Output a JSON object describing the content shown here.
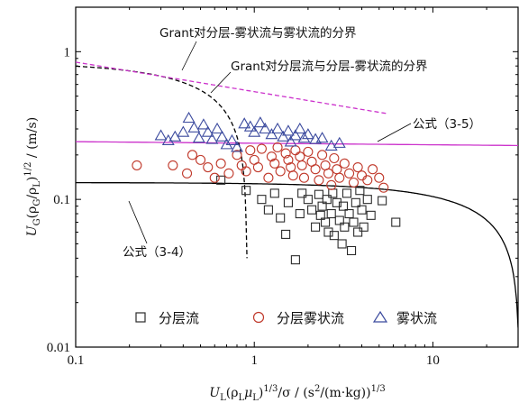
{
  "chart_data": {
    "type": "scatter",
    "x_scale": "log",
    "y_scale": "log",
    "xlim": [
      0.1,
      30
    ],
    "ylim": [
      0.01,
      2
    ],
    "x_ticks": [
      "0.1",
      "1",
      "10"
    ],
    "y_ticks": [
      "0.01",
      "0.1",
      "1"
    ],
    "xlabel": {
      "base": "U",
      "sub1": "L",
      "paren_open": "(ρ",
      "sub2": "L",
      "mu": "μ",
      "sub3": "L",
      "exp": "1/3",
      "rest": "/σ  / (s",
      "exp2": "2",
      "rest2": "/(m·kg))",
      "exp3": "1/3"
    },
    "ylabel": {
      "base": "U",
      "sub1": "G",
      "paren_open": "(ρ",
      "sub2": "G",
      "slash": "/ρ",
      "sub3": "L",
      "paren_close": ")",
      "exp": "1/2",
      "unit": " / (m/s)"
    },
    "series": [
      {
        "name": "分层流",
        "marker": "square",
        "color": "#2b2b2b",
        "points": [
          [
            0.65,
            0.135
          ],
          [
            0.9,
            0.115
          ],
          [
            1.1,
            0.1
          ],
          [
            1.2,
            0.085
          ],
          [
            1.3,
            0.11
          ],
          [
            1.4,
            0.075
          ],
          [
            1.5,
            0.058
          ],
          [
            1.55,
            0.095
          ],
          [
            1.7,
            0.039
          ],
          [
            1.8,
            0.08
          ],
          [
            1.85,
            0.11
          ],
          [
            2.0,
            0.1
          ],
          [
            2.1,
            0.085
          ],
          [
            2.2,
            0.065
          ],
          [
            2.3,
            0.108
          ],
          [
            2.35,
            0.078
          ],
          [
            2.4,
            0.09
          ],
          [
            2.5,
            0.07
          ],
          [
            2.55,
            0.1
          ],
          [
            2.6,
            0.06
          ],
          [
            2.7,
            0.08
          ],
          [
            2.75,
            0.11
          ],
          [
            2.8,
            0.057
          ],
          [
            2.9,
            0.095
          ],
          [
            3.0,
            0.072
          ],
          [
            3.1,
            0.05
          ],
          [
            3.15,
            0.09
          ],
          [
            3.2,
            0.065
          ],
          [
            3.3,
            0.11
          ],
          [
            3.4,
            0.08
          ],
          [
            3.5,
            0.045
          ],
          [
            3.6,
            0.07
          ],
          [
            3.7,
            0.095
          ],
          [
            3.8,
            0.06
          ],
          [
            3.9,
            0.115
          ],
          [
            4.0,
            0.085
          ],
          [
            4.1,
            0.065
          ],
          [
            4.3,
            0.1
          ],
          [
            4.5,
            0.078
          ],
          [
            5.2,
            0.098
          ],
          [
            6.2,
            0.07
          ]
        ]
      },
      {
        "name": "分层雾状流",
        "marker": "circle",
        "color": "#c0392b",
        "points": [
          [
            0.22,
            0.17
          ],
          [
            0.35,
            0.17
          ],
          [
            0.42,
            0.15
          ],
          [
            0.45,
            0.2
          ],
          [
            0.5,
            0.185
          ],
          [
            0.55,
            0.165
          ],
          [
            0.6,
            0.14
          ],
          [
            0.65,
            0.175
          ],
          [
            0.72,
            0.15
          ],
          [
            0.8,
            0.2
          ],
          [
            0.85,
            0.17
          ],
          [
            0.9,
            0.155
          ],
          [
            0.95,
            0.215
          ],
          [
            1.0,
            0.185
          ],
          [
            1.05,
            0.165
          ],
          [
            1.1,
            0.22
          ],
          [
            1.2,
            0.14
          ],
          [
            1.25,
            0.195
          ],
          [
            1.3,
            0.175
          ],
          [
            1.35,
            0.225
          ],
          [
            1.4,
            0.155
          ],
          [
            1.5,
            0.205
          ],
          [
            1.55,
            0.185
          ],
          [
            1.6,
            0.165
          ],
          [
            1.65,
            0.145
          ],
          [
            1.7,
            0.215
          ],
          [
            1.8,
            0.195
          ],
          [
            1.85,
            0.17
          ],
          [
            1.9,
            0.14
          ],
          [
            2.0,
            0.21
          ],
          [
            2.1,
            0.18
          ],
          [
            2.2,
            0.16
          ],
          [
            2.3,
            0.135
          ],
          [
            2.4,
            0.2
          ],
          [
            2.5,
            0.17
          ],
          [
            2.6,
            0.15
          ],
          [
            2.7,
            0.125
          ],
          [
            2.8,
            0.19
          ],
          [
            2.9,
            0.16
          ],
          [
            3.0,
            0.14
          ],
          [
            3.2,
            0.175
          ],
          [
            3.4,
            0.15
          ],
          [
            3.6,
            0.13
          ],
          [
            3.8,
            0.165
          ],
          [
            4.0,
            0.145
          ],
          [
            4.3,
            0.135
          ],
          [
            4.6,
            0.16
          ],
          [
            5.0,
            0.14
          ],
          [
            5.3,
            0.12
          ]
        ]
      },
      {
        "name": "雾状流",
        "marker": "triangle",
        "color": "#3b4a9e",
        "points": [
          [
            0.3,
            0.27
          ],
          [
            0.33,
            0.25
          ],
          [
            0.36,
            0.265
          ],
          [
            0.4,
            0.285
          ],
          [
            0.43,
            0.355
          ],
          [
            0.46,
            0.305
          ],
          [
            0.49,
            0.26
          ],
          [
            0.52,
            0.32
          ],
          [
            0.55,
            0.285
          ],
          [
            0.58,
            0.255
          ],
          [
            0.62,
            0.3
          ],
          [
            0.66,
            0.265
          ],
          [
            0.7,
            0.235
          ],
          [
            0.75,
            0.25
          ],
          [
            0.8,
            0.225
          ],
          [
            0.88,
            0.325
          ],
          [
            0.95,
            0.31
          ],
          [
            1.0,
            0.285
          ],
          [
            1.08,
            0.33
          ],
          [
            1.15,
            0.3
          ],
          [
            1.25,
            0.275
          ],
          [
            1.35,
            0.3
          ],
          [
            1.45,
            0.265
          ],
          [
            1.55,
            0.29
          ],
          [
            1.6,
            0.245
          ],
          [
            1.7,
            0.27
          ],
          [
            1.8,
            0.3
          ],
          [
            1.9,
            0.26
          ],
          [
            2.0,
            0.275
          ],
          [
            2.2,
            0.255
          ],
          [
            2.4,
            0.26
          ],
          [
            2.7,
            0.23
          ],
          [
            3.0,
            0.24
          ]
        ]
      }
    ],
    "curves": [
      {
        "name": "公式（3-4）",
        "style": "solid",
        "color": "#000000"
      },
      {
        "name": "公式（3-5）",
        "style": "solid",
        "color": "#cc33cc"
      },
      {
        "name": "Grant对分层流与分层-雾状流的分界",
        "style": "dashed",
        "color": "#000000"
      },
      {
        "name": "Grant对分层-雾状流与雾状流的分界",
        "style": "dashed",
        "color": "#cc33cc"
      }
    ],
    "annotations": [
      "Grant对分层-雾状流与雾状流的分界",
      "Grant对分层流与分层-雾状流的分界",
      "公式（3-5）",
      "公式（3-4）"
    ],
    "legend": {
      "placement": "bottom",
      "entries": [
        "分层流",
        "分层雾状流",
        "雾状流"
      ]
    }
  }
}
